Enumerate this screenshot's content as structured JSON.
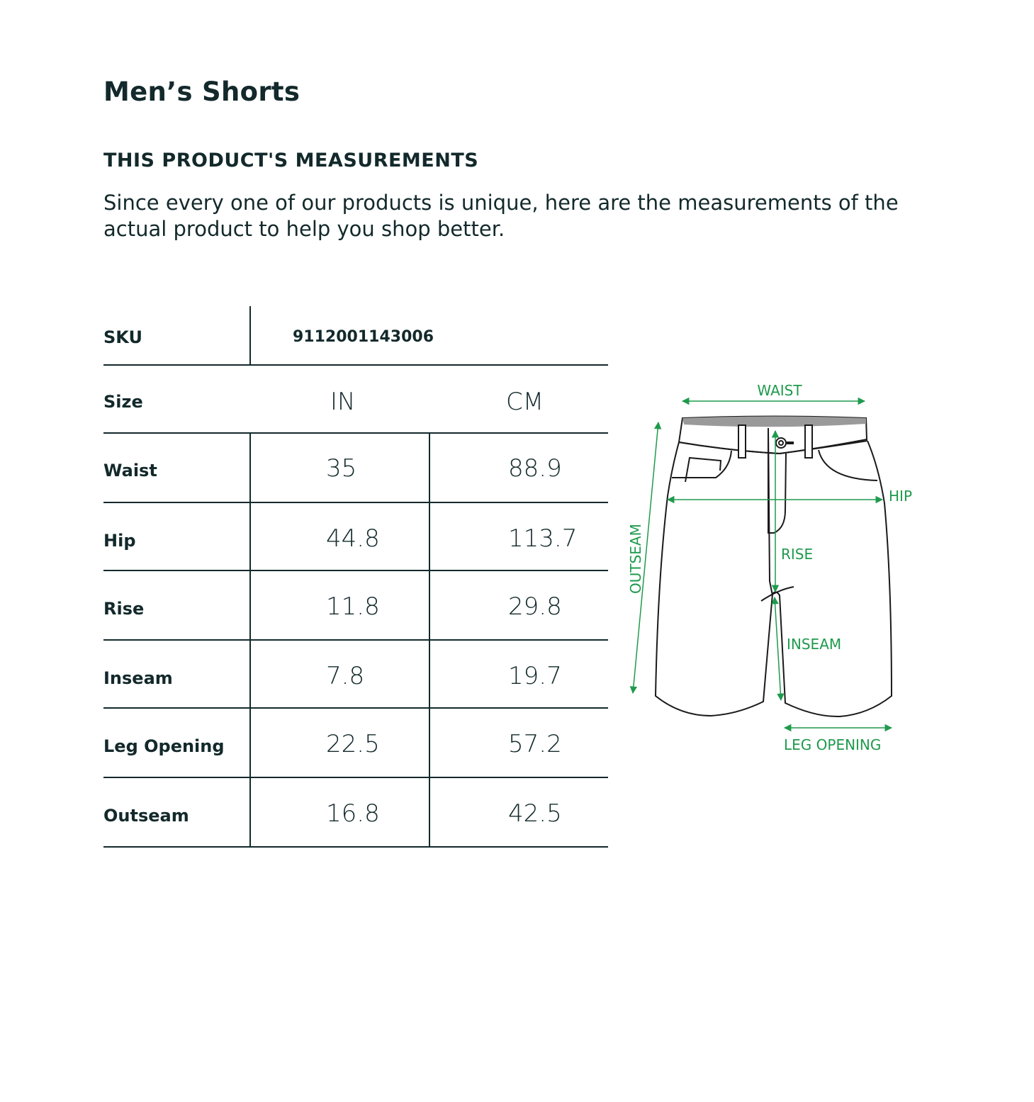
{
  "title": "Men’s Shorts",
  "section_heading": "THIS PRODUCT'S MEASUREMENTS",
  "description": "Since every one of our products is unique, here are the measurements of the actual product to help you shop better.",
  "table": {
    "sku_label": "SKU",
    "sku_value": "9112001143006",
    "size_label": "Size",
    "unit_in": "IN",
    "unit_cm": "CM",
    "rows": [
      {
        "label": "Waist",
        "in": "35",
        "cm": "88.9"
      },
      {
        "label": "Hip",
        "in": "44.8",
        "cm": "113.7"
      },
      {
        "label": "Rise",
        "in": "11.8",
        "cm": "29.8"
      },
      {
        "label": "Inseam",
        "in": "7.8",
        "cm": "19.7"
      },
      {
        "label": "Leg Opening",
        "in": "22.5",
        "cm": "57.2"
      },
      {
        "label": "Outseam",
        "in": "16.8",
        "cm": "42.5"
      }
    ]
  },
  "diagram": {
    "waist": "WAIST",
    "hip": "HIP",
    "outseam": "OUTSEAM",
    "rise": "RISE",
    "inseam": "INSEAM",
    "leg_opening": "LEG OPENING"
  },
  "colors": {
    "text": "#13292b",
    "accent": "#1f9a4d"
  }
}
